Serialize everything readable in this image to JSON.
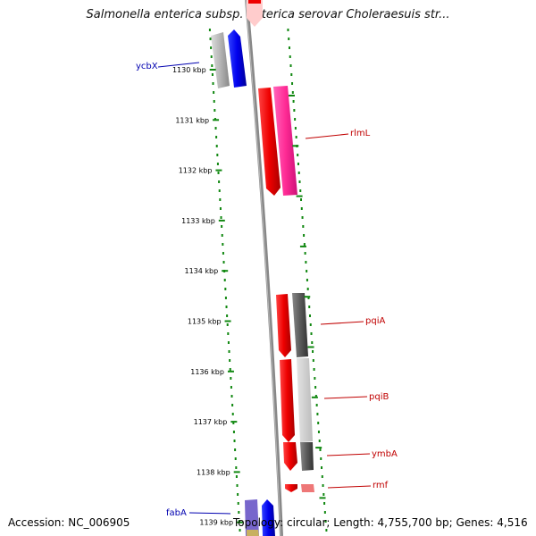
{
  "title": "Salmonella enterica subsp. enterica serovar Choleraesuis str...",
  "accession_text": "Accession: NC_006905",
  "topology_text": "Topology: circular; Length: 4,755,700 bp; Genes: 4,516",
  "colors": {
    "forward_strand": "#0000ee",
    "forward_other": "#b0b0b0",
    "reverse_strand": "#ee0000",
    "reverse_pink": "#ff3399",
    "dark_gray": "#555555",
    "tick_green": "#118811",
    "backbone": "#888888"
  },
  "axis": {
    "unit": "kbp",
    "ticks": [
      "1130 kbp",
      "1131 kbp",
      "1132 kbp",
      "1133 kbp",
      "1134 kbp",
      "1135 kbp",
      "1136 kbp",
      "1137 kbp",
      "1138 kbp",
      "1139 kbp"
    ]
  },
  "genes": [
    {
      "name": "ycbX",
      "strand": "forward",
      "color": "blue"
    },
    {
      "name": "rlmL",
      "strand": "reverse",
      "color": "red"
    },
    {
      "name": "pqiA",
      "strand": "reverse",
      "color": "red"
    },
    {
      "name": "pqiB",
      "strand": "reverse",
      "color": "red"
    },
    {
      "name": "ymbA",
      "strand": "reverse",
      "color": "red"
    },
    {
      "name": "rmf",
      "strand": "reverse",
      "color": "red"
    },
    {
      "name": "fabA",
      "strand": "forward",
      "color": "blue"
    }
  ]
}
